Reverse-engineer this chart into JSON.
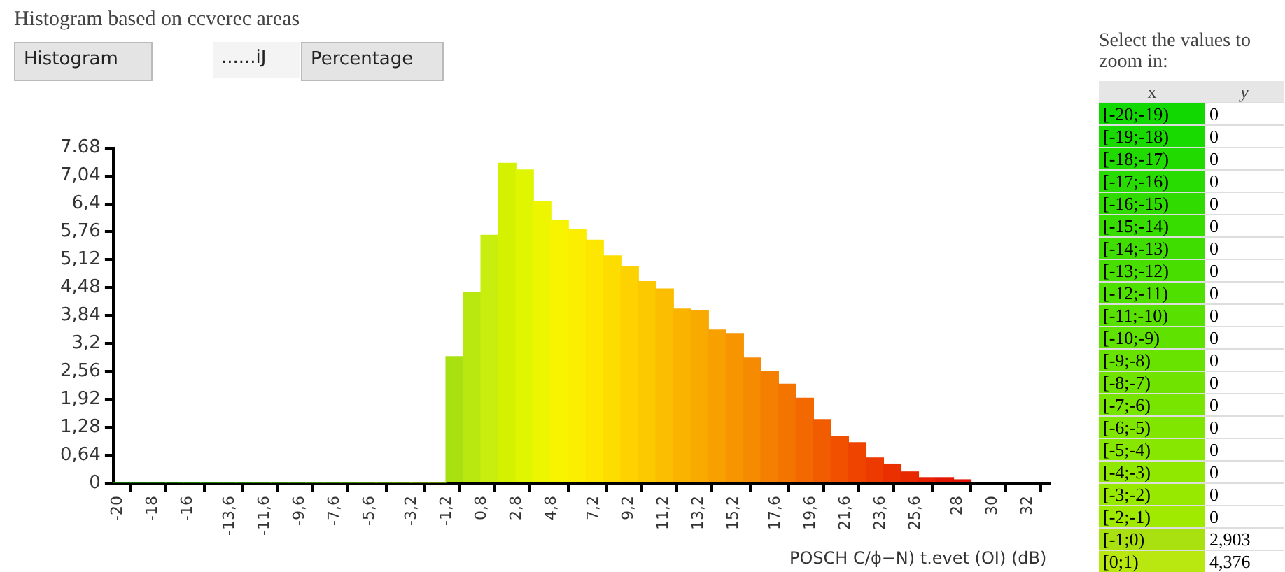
{
  "chart_data": {
    "type": "histogram",
    "title": "Histogram based on ccverec areas",
    "xlabel": "POSCH C/ϕ−N) t.evet (OI) (dB)",
    "annotations": [
      "Histogram",
      "......iJ",
      "Percentage",
      "Select the values to zoom in:",
      "x",
      "y",
      "0",
      "0",
      "0",
      "0",
      "0",
      "0",
      "0",
      "0",
      "0",
      "0",
      "0",
      "0",
      "0",
      "0",
      "0",
      "0",
      "0",
      "0",
      "0",
      "2,903",
      "4,376",
      "[-20;-19)",
      "[-19;-18)",
      "[-18;-17)",
      "[-17;-16)",
      "[-16;-15)",
      "[-15;-14)",
      "[-14;-13)",
      "[-13;-12)",
      "[-12;-11)",
      "[-11;-10)",
      "[-10;-9)",
      "[-9;-8)",
      "[-8;-7)",
      "[-7;-6)",
      "[-6;-5)",
      "[-5;-4)",
      "[-4;-3)",
      "[-3;-2)",
      "[-2;-1)",
      "[-1;0)",
      "[0;1)"
    ],
    "bins": [
      -20,
      -19,
      -18,
      -17,
      -16,
      -15,
      -14,
      -13,
      -12,
      -11,
      -10,
      -9,
      -8,
      -7,
      -6,
      -5,
      -4,
      -3,
      -2,
      -1,
      0,
      1,
      2,
      3,
      4,
      5,
      6,
      7,
      8,
      9,
      10,
      11,
      12,
      13,
      14,
      15,
      16,
      17,
      18,
      19,
      20,
      21,
      22,
      23,
      24,
      25,
      26,
      27,
      28,
      29
    ],
    "values": [
      0,
      0,
      0,
      0,
      0,
      0,
      0,
      0,
      0,
      0,
      0,
      0,
      0,
      0,
      0,
      0,
      0,
      0,
      0,
      2.903,
      4.376,
      5.68,
      7.33,
      7.18,
      6.45,
      6.03,
      5.82,
      5.57,
      5.21,
      4.96,
      4.62,
      4.45,
      3.99,
      3.96,
      3.51,
      3.43,
      2.87,
      2.56,
      2.27,
      1.95,
      1.46,
      1.08,
      0.93,
      0.58,
      0.44,
      0.26,
      0.13,
      0.13,
      0.08
    ],
    "colors": [
      "#10d800",
      "#18d900",
      "#20da00",
      "#28db00",
      "#30dc00",
      "#38dd00",
      "#40de00",
      "#48df00",
      "#50e000",
      "#58e100",
      "#60e200",
      "#68e300",
      "#70e400",
      "#78e500",
      "#80e600",
      "#88e700",
      "#90e800",
      "#98e900",
      "#a0ea00",
      "#a8e010",
      "#b8e810",
      "#c8ee10",
      "#d4f200",
      "#e0f500",
      "#eef500",
      "#f8f400",
      "#fcee00",
      "#fde600",
      "#fddc00",
      "#fdd200",
      "#fcc800",
      "#fbbe00",
      "#fab400",
      "#f9aa00",
      "#f8a000",
      "#f79500",
      "#f68a00",
      "#f57f00",
      "#f47400",
      "#f36800",
      "#f25c00",
      "#f05000",
      "#ee4400",
      "#ec3a00",
      "#ea3000",
      "#e82800",
      "#e62000",
      "#e41800",
      "#e21000"
    ],
    "xlim": [
      -20,
      33.5
    ],
    "xticks": [
      -20,
      -18,
      -16,
      {
        "value": -13.6,
        "label": "-13,6"
      },
      {
        "value": -11.6,
        "label": "-11,6"
      },
      {
        "value": -9.6,
        "label": "-9,6"
      },
      {
        "value": -7.6,
        "label": "-7,6"
      },
      {
        "value": -5.6,
        "label": "-5,6"
      },
      {
        "value": -3.2,
        "label": "-3,2"
      },
      {
        "value": -1.2,
        "label": "-1,2"
      },
      {
        "value": 0.8,
        "label": "0,8"
      },
      {
        "value": 2.8,
        "label": "2,8"
      },
      {
        "value": 4.8,
        "label": "4,8"
      },
      {
        "value": 7.2,
        "label": "7,2"
      },
      {
        "value": 9.2,
        "label": "9,2"
      },
      {
        "value": 11.2,
        "label": "11,2"
      },
      {
        "value": 13.2,
        "label": "13,2"
      },
      {
        "value": 15.2,
        "label": "15,2"
      },
      {
        "value": 17.6,
        "label": "17,6"
      },
      {
        "value": 19.6,
        "label": "19,6"
      },
      {
        "value": 21.6,
        "label": "21,6"
      },
      {
        "value": 23.6,
        "label": "23,6"
      },
      {
        "value": 25.6,
        "label": "25,6"
      },
      28,
      30,
      32
    ],
    "ylim": [
      0,
      7.68
    ],
    "yticks": [
      0,
      {
        "value": 0.64,
        "label": "0,64"
      },
      {
        "value": 1.28,
        "label": "1,28"
      },
      {
        "value": 1.92,
        "label": "1,92"
      },
      {
        "value": 2.56,
        "label": "2,56"
      },
      {
        "value": 3.2,
        "label": "3,2"
      },
      {
        "value": 3.84,
        "label": "3,84"
      },
      {
        "value": 4.48,
        "label": "4,48"
      },
      {
        "value": 5.12,
        "label": "5,12"
      },
      {
        "value": 5.76,
        "label": "5,76"
      },
      {
        "value": 6.4,
        "label": "6,4"
      },
      {
        "value": 7.04,
        "label": "7,04"
      },
      {
        "value": 7.68,
        "label": "7.68"
      }
    ]
  }
}
